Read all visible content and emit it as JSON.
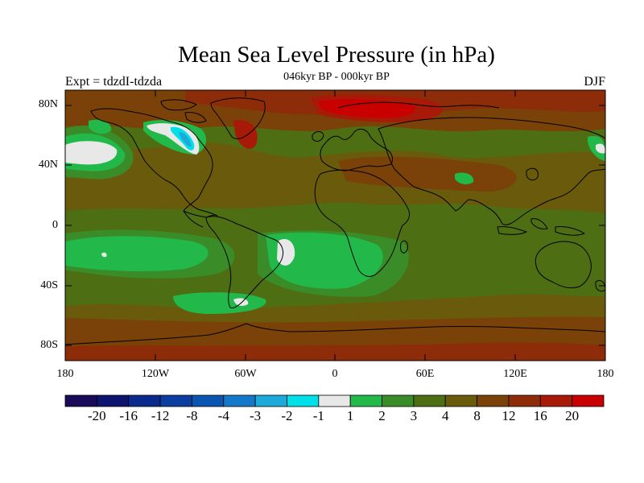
{
  "title": "Mean Sea Level Pressure (in hPa)",
  "subtitle": "046kyr BP - 000kyr BP",
  "left_label": "Expt = tdzdI-tdzda",
  "right_label": "DJF",
  "lat_labels": [
    "80N",
    "40N",
    "0",
    "40S",
    "80S"
  ],
  "lon_labels": [
    "180",
    "120W",
    "60W",
    "0",
    "60E",
    "120E",
    "180"
  ],
  "colorbar": {
    "labels": [
      "-20",
      "-16",
      "-12",
      "-8",
      "-4",
      "-3",
      "-2",
      "-1",
      "1",
      "2",
      "3",
      "4",
      "8",
      "12",
      "16",
      "20"
    ],
    "colors": [
      "#1a0a5a",
      "#0d1470",
      "#0a2a8c",
      "#0c3ea0",
      "#0a55b0",
      "#1478c8",
      "#1eaad8",
      "#00e0e8",
      "#e8e8e8",
      "#22b84a",
      "#3a8c28",
      "#4e6e14",
      "#6a5a0c",
      "#7a4208",
      "#8c2c08",
      "#a81a08",
      "#c80000"
    ]
  },
  "colors": {
    "ocean_base": "#4e6e14",
    "land_base": "#6a5a0c"
  }
}
